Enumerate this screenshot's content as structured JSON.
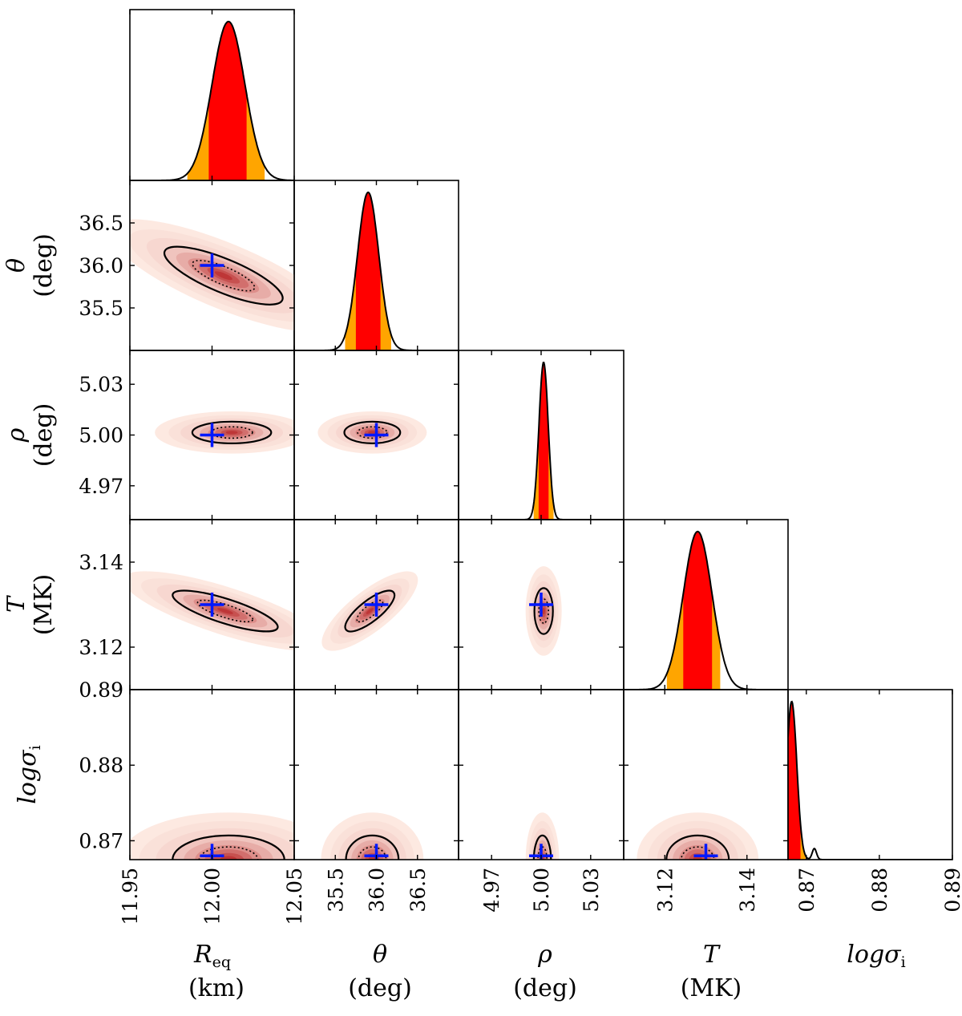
{
  "chart_data": {
    "type": "corner",
    "title": "",
    "colors": {
      "inner_band": "#ff0000",
      "outer_band": "#ffa500",
      "curve": "#000000",
      "density_max": "#b51e20",
      "density_min": "#fde9e1",
      "truth_marker": "#0018ff"
    },
    "params": [
      {
        "key": "R",
        "symbol": "R",
        "sub": "eq",
        "unit": "(km)",
        "range": [
          11.95,
          12.05
        ],
        "ticks": [
          "11.95",
          "12.00",
          "12.05"
        ],
        "tick_values": [
          11.95,
          12.0,
          12.05
        ],
        "truth": 12.0,
        "mean": 12.01,
        "sd": 0.01,
        "inner": [
          11.998,
          12.021
        ],
        "outer": [
          11.985,
          12.032
        ]
      },
      {
        "key": "theta",
        "symbol": "θ",
        "sub": "",
        "unit": "(deg)",
        "range": [
          35.0,
          37.0
        ],
        "ticks": [
          "35.5",
          "36.0",
          "36.5"
        ],
        "tick_values": [
          35.5,
          36.0,
          36.5
        ],
        "truth": 36.0,
        "mean": 35.9,
        "sd": 0.13,
        "inner": [
          35.75,
          36.05
        ],
        "outer": [
          35.62,
          36.18
        ]
      },
      {
        "key": "rho",
        "symbol": "ρ",
        "sub": "",
        "unit": "(deg)",
        "range": [
          4.95,
          5.05
        ],
        "ticks": [
          "4.97",
          "5.00",
          "5.03"
        ],
        "tick_values": [
          4.97,
          5.0,
          5.03
        ],
        "truth": 5.0,
        "mean": 5.0015,
        "sd": 0.0028,
        "inner": [
          4.9985,
          5.0045
        ],
        "outer": [
          4.9955,
          5.0075
        ]
      },
      {
        "key": "T",
        "symbol": "T",
        "sub": "",
        "unit": "(MK)",
        "range": [
          3.11,
          3.15
        ],
        "ticks": [
          "3.12",
          "3.14"
        ],
        "tick_values": [
          3.12,
          3.14
        ],
        "truth": 3.13,
        "mean": 3.128,
        "sd": 0.0035,
        "inner": [
          3.1245,
          3.1315
        ],
        "outer": [
          3.1205,
          3.1335
        ]
      },
      {
        "key": "logsigma",
        "symbol": "logσ",
        "sub": "i",
        "unit": "",
        "range": [
          0.8675,
          0.89
        ],
        "ticks": [
          "0.87",
          "0.88",
          "0.89"
        ],
        "tick_values": [
          0.87,
          0.88,
          0.89
        ],
        "truth": 0.868,
        "mean": 0.868,
        "sd": 0.0007,
        "inner": [
          0.8675,
          0.8692
        ],
        "outer": [
          0.8692,
          0.8699
        ],
        "secondary_bump": [
          0.8711,
          0.0003,
          0.07
        ]
      }
    ],
    "pairs": [
      {
        "x": "R",
        "y": "theta",
        "mean": [
          12.007,
          35.88
        ],
        "sd": [
          0.018,
          0.17
        ],
        "corr": -0.78
      },
      {
        "x": "R",
        "y": "rho",
        "mean": [
          12.012,
          5.0015
        ],
        "sd": [
          0.012,
          0.0032
        ],
        "corr": 0.0
      },
      {
        "x": "theta",
        "y": "rho",
        "mean": [
          35.95,
          5.0015
        ],
        "sd": [
          0.17,
          0.0032
        ],
        "corr": 0.0
      },
      {
        "x": "R",
        "y": "T",
        "mean": [
          12.008,
          3.1285
        ],
        "sd": [
          0.016,
          0.0024
        ],
        "corr": -0.78
      },
      {
        "x": "theta",
        "y": "T",
        "mean": [
          35.92,
          3.1285
        ],
        "sd": [
          0.15,
          0.0024
        ],
        "corr": 0.78
      },
      {
        "x": "rho",
        "y": "T",
        "mean": [
          5.0015,
          3.1285
        ],
        "sd": [
          0.0028,
          0.0027
        ],
        "corr": 0.0
      },
      {
        "x": "R",
        "y": "logsigma",
        "mean": [
          12.01,
          0.8675
        ],
        "sd": [
          0.017,
          0.0016
        ],
        "corr": 0.0
      },
      {
        "x": "theta",
        "y": "logsigma",
        "mean": [
          35.95,
          0.8675
        ],
        "sd": [
          0.16,
          0.0016
        ],
        "corr": 0.0
      },
      {
        "x": "rho",
        "y": "logsigma",
        "mean": [
          5.0008,
          0.8675
        ],
        "sd": [
          0.0026,
          0.0016
        ],
        "corr": 0.0
      },
      {
        "x": "T",
        "y": "logsigma",
        "mean": [
          3.128,
          0.8675
        ],
        "sd": [
          0.0038,
          0.0016
        ],
        "corr": 0.0
      }
    ]
  }
}
